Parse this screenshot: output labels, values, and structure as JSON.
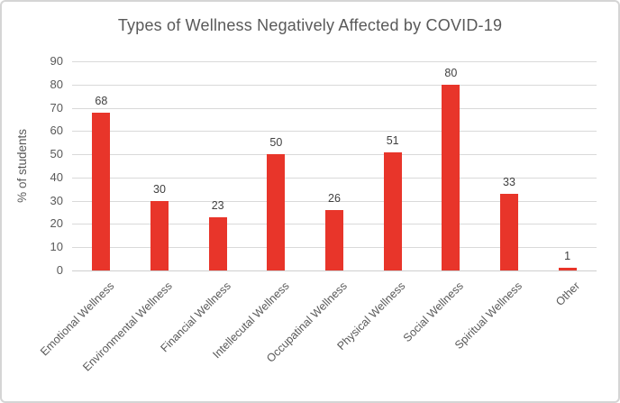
{
  "chart_data": {
    "type": "bar",
    "title": "Types of Wellness Negatively Affected by COVID-19",
    "xlabel": "",
    "ylabel": "% of students",
    "categories": [
      "Emotional Wellness",
      "Environmental Wellness",
      "Financial Wellness",
      "Intellecutal Wellness",
      "Occupatinal Wellness",
      "Physical Wellness",
      "Social Wellness",
      "Spiritual Wellness",
      "Other"
    ],
    "values": [
      68,
      30,
      23,
      50,
      26,
      51,
      80,
      33,
      1
    ],
    "data_labels": [
      "68",
      "30",
      "23",
      "50",
      "26",
      "51",
      "80",
      "33",
      "1"
    ],
    "ylim": [
      0,
      90
    ],
    "yticks": [
      0,
      10,
      20,
      30,
      40,
      50,
      60,
      70,
      80,
      90
    ],
    "grid": true,
    "legend": "none",
    "colors": {
      "bar": "#e8352a",
      "title_text": "#595959",
      "axis_text": "#595959",
      "data_label_text": "#404040",
      "gridline": "#d9d9d9",
      "axis_line": "#cfcfcf",
      "border": "#d5d5d5",
      "background": "#ffffff"
    }
  }
}
